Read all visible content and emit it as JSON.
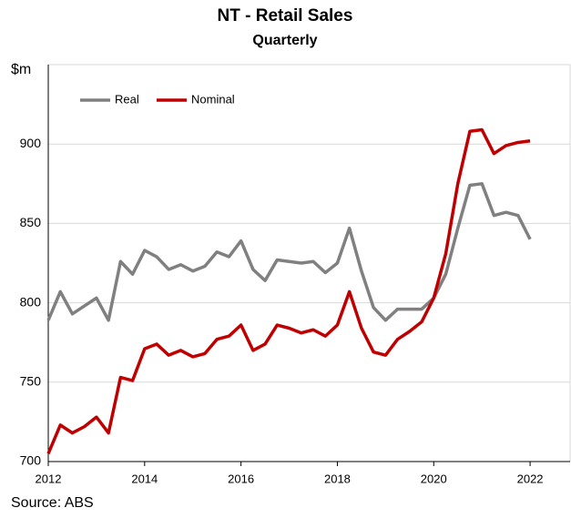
{
  "chart_data": {
    "type": "line",
    "title": "NT - Retail Sales",
    "subtitle": "Quarterly",
    "y_label": "$m",
    "source": "Source: ABS",
    "x": [
      2012,
      2012.25,
      2012.5,
      2012.75,
      2013,
      2013.25,
      2013.5,
      2013.75,
      2014,
      2014.25,
      2014.5,
      2014.75,
      2015,
      2015.25,
      2015.5,
      2015.75,
      2016,
      2016.25,
      2016.5,
      2016.75,
      2017,
      2017.25,
      2017.5,
      2017.75,
      2018,
      2018.25,
      2018.5,
      2018.75,
      2019,
      2019.25,
      2019.5,
      2019.75,
      2020,
      2020.25,
      2020.5,
      2020.75,
      2021,
      2021.25,
      2021.5,
      2021.75,
      2022
    ],
    "series": [
      {
        "name": "Real",
        "color": "#808080",
        "values": [
          789,
          807,
          793,
          798,
          803,
          789,
          826,
          818,
          833,
          829,
          821,
          824,
          820,
          823,
          832,
          829,
          839,
          821,
          814,
          827,
          826,
          825,
          826,
          819,
          825,
          847,
          820,
          797,
          789,
          796,
          796,
          796,
          803,
          818,
          847,
          874,
          875,
          855,
          857,
          855,
          840
        ]
      },
      {
        "name": "Nominal",
        "color": "#c00000",
        "values": [
          705,
          723,
          718,
          722,
          728,
          718,
          753,
          751,
          771,
          774,
          767,
          770,
          766,
          768,
          777,
          779,
          786,
          770,
          774,
          786,
          784,
          781,
          783,
          779,
          786,
          807,
          784,
          769,
          767,
          777,
          782,
          788,
          803,
          831,
          875,
          908,
          909,
          894,
          899,
          901,
          902
        ]
      }
    ],
    "xlim": [
      2012,
      2022.83
    ],
    "xticks": [
      2012,
      2014,
      2016,
      2018,
      2020,
      2022
    ],
    "ylim": [
      700,
      950
    ],
    "yticks": [
      700,
      750,
      800,
      850,
      900
    ],
    "grid": true,
    "legend": "top-left"
  }
}
